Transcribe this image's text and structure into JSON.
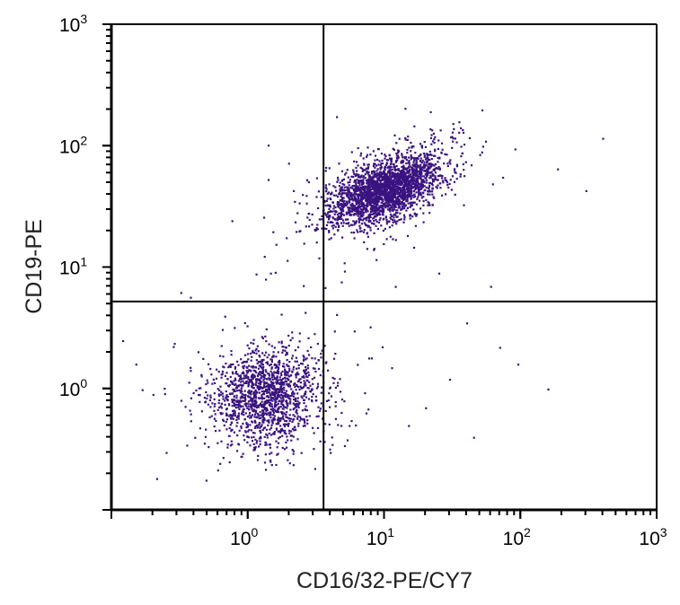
{
  "chart_data": {
    "type": "scatter",
    "title": "",
    "xlabel": "CD16/32-PE/CY7",
    "ylabel": "CD19-PE",
    "x_scale": "log",
    "y_scale": "log",
    "xlim": [
      0.1,
      1000
    ],
    "ylim": [
      0.1,
      1000
    ],
    "x_ticks": [
      {
        "base": "10",
        "exp": "0",
        "value": 1
      },
      {
        "base": "10",
        "exp": "1",
        "value": 10
      },
      {
        "base": "10",
        "exp": "2",
        "value": 100
      },
      {
        "base": "10",
        "exp": "3",
        "value": 1000
      }
    ],
    "y_ticks": [
      {
        "base": "10",
        "exp": "0",
        "value": 1
      },
      {
        "base": "10",
        "exp": "1",
        "value": 10
      },
      {
        "base": "10",
        "exp": "2",
        "value": 100
      },
      {
        "base": "10",
        "exp": "3",
        "value": 1000
      }
    ],
    "grid": false,
    "quadrant_gates": {
      "x": 3.6,
      "y": 5.2
    },
    "point_color": "#3b1380",
    "populations": [
      {
        "quadrant": "upper-right",
        "center": [
          10,
          44
        ],
        "log_spread": [
          0.2,
          0.14
        ],
        "count": 2600
      },
      {
        "quadrant": "lower-left",
        "center": [
          1.35,
          0.9
        ],
        "log_spread": [
          0.2,
          0.2
        ],
        "count": 1500
      }
    ],
    "outlier_points": [
      [
        398,
        116
      ],
      [
        186,
        65
      ],
      [
        300,
        43
      ],
      [
        95,
        1.6
      ],
      [
        158,
        1.0
      ],
      [
        0.12,
        2.5
      ],
      [
        0.15,
        1.6
      ],
      [
        1.4,
        102
      ],
      [
        1.4,
        53
      ],
      [
        1.3,
        26
      ],
      [
        1.9,
        17.6
      ],
      [
        5.5,
        0.5
      ],
      [
        8,
        1.8
      ],
      [
        20,
        0.7
      ],
      [
        30,
        1.2
      ],
      [
        45,
        0.4
      ],
      [
        60,
        7
      ],
      [
        25,
        9
      ],
      [
        12,
        7
      ],
      [
        6,
        3
      ],
      [
        4,
        0.3
      ],
      [
        0.25,
        0.3
      ],
      [
        0.2,
        0.9
      ],
      [
        70,
        2.2
      ],
      [
        40,
        3.5
      ],
      [
        15,
        0.5
      ],
      [
        3.3,
        12
      ],
      [
        2.5,
        40
      ],
      [
        55,
        110
      ],
      [
        35,
        130
      ]
    ]
  }
}
